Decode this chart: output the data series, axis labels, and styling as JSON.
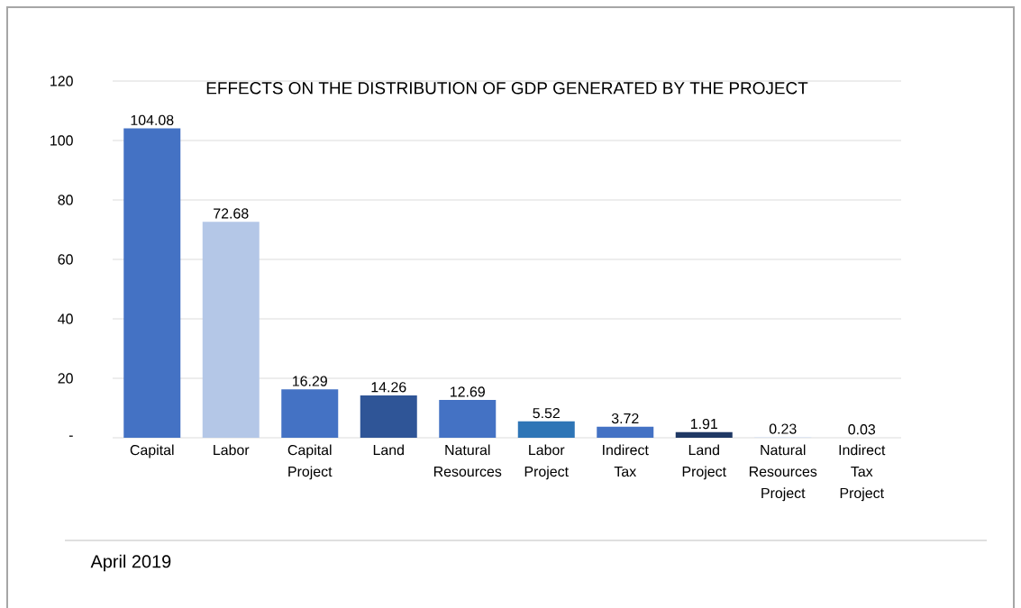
{
  "chart_data": {
    "type": "bar",
    "title": "EFFECTS ON THE DISTRIBUTION OF GDP GENERATED BY THE PROJECT",
    "categories": [
      "Capital",
      "Labor",
      "Capital Project",
      "Land",
      "Natural Resources",
      "Labor Project",
      "Indirect Tax",
      "Land Project",
      "Natural Resources Project",
      "Indirect Tax Project"
    ],
    "values": [
      104.08,
      72.68,
      16.29,
      14.26,
      12.69,
      5.52,
      3.72,
      1.91,
      0.23,
      0.03
    ],
    "colors": [
      "#4472c4",
      "#b4c7e7",
      "#4472c4",
      "#2f5597",
      "#4472c4",
      "#2e75b6",
      "#4472c4",
      "#1f3864",
      "#dae3f3",
      "#dae3f3"
    ],
    "ylim": [
      0,
      120
    ],
    "yticks": [
      {
        "value": 0,
        "label": "-"
      },
      20,
      40,
      60,
      80,
      100,
      120
    ],
    "grid": "y",
    "data_labels": true,
    "annotations": [
      "April 2019"
    ]
  }
}
